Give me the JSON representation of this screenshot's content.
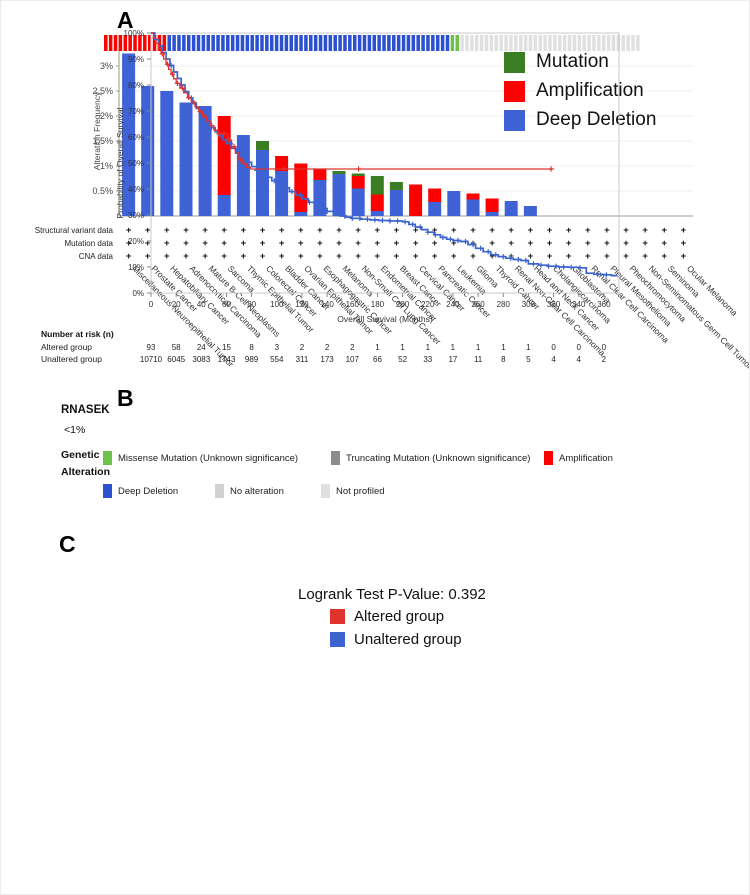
{
  "panels": {
    "a": "A",
    "b": "B",
    "c": "C"
  },
  "chart_data": [
    {
      "id": "cancer-type-summary",
      "type": "bar",
      "ylabel": "Alteration Frequency",
      "ylim": [
        0,
        3.4
      ],
      "yticks": [
        0.5,
        1,
        1.5,
        2,
        2.5,
        3
      ],
      "colors": {
        "del": "#3f62d6",
        "amp": "#fb0200",
        "mut": "#3a7d23"
      },
      "legend": [
        {
          "label": "Mutation",
          "color": "#3a7d23"
        },
        {
          "label": "Amplification",
          "color": "#fb0200"
        },
        {
          "label": "Deep Deletion",
          "color": "#3f62d6"
        }
      ],
      "data_rows": [
        "Structural variant data",
        "Mutation data",
        "CNA data"
      ],
      "plus_mark": "+",
      "categories": [
        "Miscellaneous Neuroepithelial Tumor",
        "Prostate Cancer",
        "Hepatobiliary Cancer",
        "Adrenocortical Carcinoma",
        "Mature B-Cell Neoplasms",
        "Sarcoma",
        "Thymic Epithelial Tumor",
        "Colorectal Cancer",
        "Bladder Cancer",
        "Ovarian Epithelial Tumor",
        "Esophagogastric Cancer",
        "Melanoma",
        "Non-Small Cell Lung Cancer",
        "Endometrial Cancer",
        "Breast Cancer",
        "Cervical Cancer",
        "Pancreatic Cancer",
        "Leukemia",
        "Glioma",
        "Thyroid Cancer",
        "Renal Non-Clear Cell Carcinoma",
        "Head and Neck Cancer",
        "Cholangiocarcinoma",
        "Glioblastoma",
        "Renal Clear Cell Carcinoma",
        "Pleural Mesothelioma",
        "Pheochromocytoma",
        "Non-Seminomatous Germ Cell Tumor",
        "Seminoma",
        "Ocular Melanoma"
      ],
      "bars": [
        [
          [
            "del",
            3.25
          ]
        ],
        [
          [
            "del",
            2.6
          ]
        ],
        [
          [
            "del",
            2.5
          ]
        ],
        [
          [
            "del",
            2.27
          ]
        ],
        [
          [
            "del",
            2.2
          ]
        ],
        [
          [
            "del",
            0.42
          ],
          [
            "amp",
            1.58
          ]
        ],
        [
          [
            "del",
            1.62
          ]
        ],
        [
          [
            "del",
            1.32
          ],
          [
            "mut",
            0.18
          ]
        ],
        [
          [
            "del",
            0.9
          ],
          [
            "amp",
            0.3
          ]
        ],
        [
          [
            "del",
            0.08
          ],
          [
            "amp",
            0.97
          ]
        ],
        [
          [
            "del",
            0.72
          ],
          [
            "amp",
            0.23
          ]
        ],
        [
          [
            "del",
            0.84
          ],
          [
            "mut",
            0.06
          ]
        ],
        [
          [
            "del",
            0.55
          ],
          [
            "amp",
            0.25
          ],
          [
            "mut",
            0.05
          ]
        ],
        [
          [
            "del",
            0.1
          ],
          [
            "amp",
            0.33
          ],
          [
            "mut",
            0.37
          ]
        ],
        [
          [
            "del",
            0.52
          ],
          [
            "mut",
            0.16
          ]
        ],
        [
          [
            "amp",
            0.63
          ]
        ],
        [
          [
            "del",
            0.28
          ],
          [
            "amp",
            0.27
          ]
        ],
        [
          [
            "del",
            0.5
          ]
        ],
        [
          [
            "del",
            0.33
          ],
          [
            "amp",
            0.12
          ]
        ],
        [
          [
            "del",
            0.08
          ],
          [
            "amp",
            0.27
          ]
        ],
        [
          [
            "del",
            0.3
          ]
        ],
        [
          [
            "del",
            0.2
          ]
        ],
        [],
        [],
        [],
        [],
        [],
        [],
        [],
        []
      ]
    },
    {
      "id": "oncoprint",
      "type": "oncoprint",
      "gene": "RNASEK",
      "frequency": "<1%",
      "legend_title": "Genetic Alteration",
      "colors": {
        "missense": "#6cc24a",
        "truncating": "#8c8c8c",
        "amplification": "#fb0200",
        "deep_deletion": "#2b50d0",
        "no_alteration": "#d2d2d2",
        "not_profiled": "#e0e0e0"
      },
      "track_segments": [
        [
          "amplification",
          13
        ],
        [
          "deep_deletion",
          58
        ],
        [
          "missense",
          2
        ],
        [
          "not_profiled",
          37
        ]
      ],
      "legend": [
        {
          "label": "Missense Mutation (Unknown significance)",
          "key": "missense"
        },
        {
          "label": "Truncating Mutation (Unknown significance)",
          "key": "truncating"
        },
        {
          "label": "Amplification",
          "key": "amplification"
        },
        {
          "label": "Deep Deletion",
          "key": "deep_deletion"
        },
        {
          "label": "No alteration",
          "key": "no_alteration"
        },
        {
          "label": "Not profiled",
          "key": "not_profiled"
        }
      ]
    },
    {
      "id": "overall-survival",
      "type": "line",
      "title": "Logrank Test P-Value: 0.392",
      "xlabel": "Overall Survival (Months)",
      "ylabel": "Probability of Overall Survival",
      "xlim": [
        0,
        372
      ],
      "ylim": [
        0,
        100
      ],
      "xticks": [
        0,
        20,
        40,
        60,
        80,
        100,
        120,
        140,
        160,
        180,
        200,
        220,
        240,
        260,
        280,
        300,
        320,
        340,
        360
      ],
      "yticks": [
        0,
        10,
        20,
        30,
        40,
        50,
        60,
        70,
        80,
        90,
        100
      ],
      "series": [
        {
          "name": "Unaltered group",
          "color": "#3c64cf",
          "width": 1.7,
          "points": [
            [
              0,
              100
            ],
            [
              3,
              97.5
            ],
            [
              6,
              95
            ],
            [
              9,
              92.5
            ],
            [
              12,
              90
            ],
            [
              15,
              87.5
            ],
            [
              18,
              85
            ],
            [
              21,
              82.5
            ],
            [
              24,
              80
            ],
            [
              27,
              77.5
            ],
            [
              30,
              75
            ],
            [
              33,
              73
            ],
            [
              36,
              71
            ],
            [
              39,
              69
            ],
            [
              42,
              67
            ],
            [
              45,
              65.3
            ],
            [
              48,
              63.6
            ],
            [
              51,
              62
            ],
            [
              54,
              60.5
            ],
            [
              57,
              59
            ],
            [
              60,
              57.5
            ],
            [
              64,
              55.6
            ],
            [
              68,
              53.8
            ],
            [
              72,
              52
            ],
            [
              76,
              50.3
            ],
            [
              80,
              48.6
            ],
            [
              84,
              47.2
            ],
            [
              88,
              45.8
            ],
            [
              92,
              44.5
            ],
            [
              96,
              43.2
            ],
            [
              100,
              42
            ],
            [
              105,
              40.5
            ],
            [
              110,
              39
            ],
            [
              115,
              37.6
            ],
            [
              120,
              36.2
            ],
            [
              125,
              34.9
            ],
            [
              130,
              33.7
            ],
            [
              135,
              32.5
            ],
            [
              140,
              31.4
            ],
            [
              145,
              30.4
            ],
            [
              150,
              29.6
            ],
            [
              155,
              29.1
            ],
            [
              160,
              28.7
            ],
            [
              167,
              28.4
            ],
            [
              174,
              28.1
            ],
            [
              181,
              27.9
            ],
            [
              190,
              27.7
            ],
            [
              200,
              27.4
            ],
            [
              205,
              26.4
            ],
            [
              210,
              25.4
            ],
            [
              215,
              24.4
            ],
            [
              220,
              23.4
            ],
            [
              225,
              22.4
            ],
            [
              230,
              21.4
            ],
            [
              235,
              20.7
            ],
            [
              240,
              20.2
            ],
            [
              246,
              19.8
            ],
            [
              252,
              18.6
            ],
            [
              258,
              17.2
            ],
            [
              264,
              15.9
            ],
            [
              270,
              14.7
            ],
            [
              276,
              14
            ],
            [
              282,
              13.4
            ],
            [
              288,
              12.9
            ],
            [
              294,
              12.5
            ],
            [
              300,
              11.2
            ],
            [
              308,
              10.7
            ],
            [
              316,
              10.3
            ],
            [
              324,
              10
            ],
            [
              332,
              9.9
            ],
            [
              340,
              9.7
            ],
            [
              346,
              7.6
            ],
            [
              352,
              7.2
            ],
            [
              360,
              7
            ],
            [
              366,
              6.7
            ],
            [
              370,
              6.5
            ]
          ],
          "censor_times": [
            16,
            24,
            32,
            40,
            48,
            56,
            63,
            70,
            77,
            84,
            91,
            98,
            105,
            112,
            119,
            126,
            133,
            140,
            147,
            154,
            160,
            166,
            172,
            178,
            184,
            190,
            196,
            202,
            208,
            214,
            220,
            226,
            232,
            238,
            244,
            250,
            256,
            262,
            268,
            274,
            280,
            286,
            292,
            298,
            304,
            310,
            316,
            322,
            328,
            334,
            341,
            355,
            362
          ]
        },
        {
          "name": "Altered group",
          "color": "#e1332d",
          "width": 1.3,
          "points": [
            [
              0,
              100
            ],
            [
              2,
              98
            ],
            [
              4,
              96
            ],
            [
              6,
              94
            ],
            [
              8,
              92
            ],
            [
              10,
              90
            ],
            [
              12,
              88
            ],
            [
              14,
              86
            ],
            [
              16,
              84.2
            ],
            [
              18,
              82.4
            ],
            [
              20,
              80.6
            ],
            [
              23,
              78.8
            ],
            [
              26,
              77
            ],
            [
              29,
              75.2
            ],
            [
              32,
              73.4
            ],
            [
              35,
              71.6
            ],
            [
              38,
              69.8
            ],
            [
              41,
              68
            ],
            [
              44,
              66.2
            ],
            [
              47,
              64.4
            ],
            [
              50,
              62.6
            ],
            [
              53,
              61.3
            ],
            [
              58,
              61.3
            ],
            [
              61,
              58.8
            ],
            [
              64,
              56.3
            ],
            [
              67,
              53.8
            ],
            [
              70,
              51.3
            ],
            [
              73,
              49.8
            ],
            [
              76,
              48.3
            ],
            [
              79,
              47.7
            ],
            [
              320,
              47.7
            ]
          ],
          "censor_times": [
            9,
            13,
            17,
            21,
            25,
            30,
            34,
            39,
            43,
            48,
            54,
            58,
            62,
            66,
            71,
            75,
            106,
            165,
            318
          ]
        }
      ],
      "legend_order": [
        "Altered group",
        "Unaltered group"
      ],
      "risk_table": {
        "title": "Number at risk (n)",
        "rows": [
          {
            "label": "Altered group",
            "values": [
              93,
              58,
              24,
              15,
              8,
              3,
              2,
              2,
              2,
              1,
              1,
              1,
              1,
              1,
              1,
              1,
              0,
              0,
              0
            ]
          },
          {
            "label": "Unaltered group",
            "values": [
              10710,
              6045,
              3083,
              1743,
              989,
              554,
              311,
              173,
              107,
              66,
              52,
              33,
              17,
              11,
              8,
              5,
              4,
              4,
              2
            ]
          }
        ]
      }
    }
  ]
}
